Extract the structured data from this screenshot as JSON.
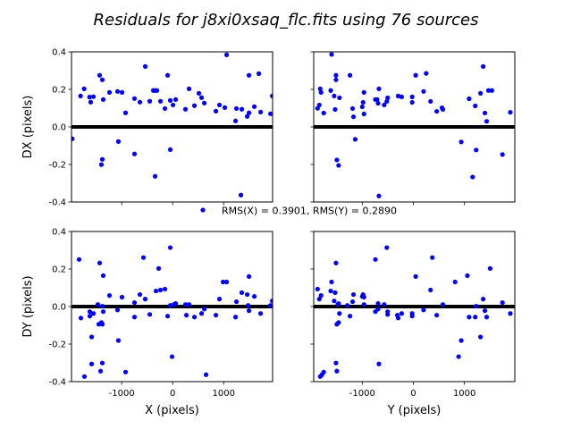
{
  "chart_data": {
    "title": "Residuals for j8xi0xsaq_flc.fits using 76 sources",
    "legend": {
      "label": "RMS(X) = 0.3901, RMS(Y) = 0.2890",
      "placement": "center"
    },
    "marker_color": "#0000ff",
    "zero_line_color": "#000000",
    "panels": [
      {
        "type": "scatter",
        "id": "dx-vs-x",
        "xlabel": "",
        "ylabel": "DX (pixels)",
        "xlim": [
          -1985,
          1960
        ],
        "ylim": [
          -0.4,
          0.4
        ],
        "xticks": [
          "-1000",
          "0",
          "1000"
        ],
        "xtick_values": [
          -1000,
          0,
          1000
        ],
        "show_xticklabels": false,
        "yticks": [
          "-0.4",
          "-0.2",
          "0.0",
          "0.2",
          "0.4"
        ],
        "ytick_values": [
          -0.4,
          -0.2,
          0,
          0.2,
          0.4
        ],
        "show_yticklabels": true,
        "points": [
          [
            -1970,
            -0.063
          ],
          [
            -1807,
            0.165
          ],
          [
            -1737,
            0.203
          ],
          [
            -1631,
            0.159
          ],
          [
            -1608,
            0.132
          ],
          [
            -1555,
            0.161
          ],
          [
            -1433,
            0.275
          ],
          [
            -1380,
            0.251
          ],
          [
            -1362,
            0.146
          ],
          [
            -1240,
            0.184
          ],
          [
            -1082,
            0.189
          ],
          [
            -994,
            0.184
          ],
          [
            -924,
            0.075
          ],
          [
            -749,
            0.151
          ],
          [
            -643,
            0.132
          ],
          [
            -538,
            0.322
          ],
          [
            -450,
            0.137
          ],
          [
            -380,
            0.194
          ],
          [
            -345,
            0.194
          ],
          [
            -310,
            0.194
          ],
          [
            -240,
            0.137
          ],
          [
            -152,
            0.098
          ],
          [
            -99,
            0.275
          ],
          [
            -47,
            0.141
          ],
          [
            6,
            0.117
          ],
          [
            58,
            0.146
          ],
          [
            251,
            0.094
          ],
          [
            321,
            0.203
          ],
          [
            427,
            0.113
          ],
          [
            514,
            0.179
          ],
          [
            567,
            0.156
          ],
          [
            620,
            0.127
          ],
          [
            848,
            0.084
          ],
          [
            918,
            0.117
          ],
          [
            1023,
            0.103
          ],
          [
            1058,
            0.384
          ],
          [
            1234,
            0.032
          ],
          [
            1251,
            0.098
          ],
          [
            1356,
            0.094
          ],
          [
            1462,
            0.056
          ],
          [
            1497,
            0.075
          ],
          [
            1497,
            0.275
          ],
          [
            1602,
            0.108
          ],
          [
            1690,
            0.284
          ],
          [
            1725,
            0.079
          ],
          [
            1918,
            0.07
          ],
          [
            1953,
            0.165
          ],
          [
            -1065,
            -0.078
          ],
          [
            -749,
            -0.144
          ],
          [
            -47,
            -0.121
          ],
          [
            -1398,
            -0.201
          ],
          [
            -1380,
            -0.173
          ],
          [
            -345,
            -0.263
          ],
          [
            1338,
            -0.363
          ]
        ]
      },
      {
        "type": "scatter",
        "id": "dx-vs-y",
        "xlabel": "",
        "ylabel": "",
        "xlim": [
          -1950,
          1985
        ],
        "ylim": [
          -0.4,
          0.4
        ],
        "xticks": [
          "-1000",
          "0",
          "1000"
        ],
        "xtick_values": [
          -1000,
          0,
          1000
        ],
        "show_xticklabels": false,
        "yticks": [
          "-0.4",
          "-0.2",
          "0.0",
          "0.2",
          "0.4"
        ],
        "ytick_values": [
          -0.4,
          -0.2,
          0,
          0.2,
          0.4
        ],
        "show_yticklabels": false,
        "points": [
          [
            -1874,
            0.099
          ],
          [
            -1840,
            0.117
          ],
          [
            -1823,
            0.203
          ],
          [
            -1806,
            0.184
          ],
          [
            -1754,
            0.074
          ],
          [
            -1617,
            0.194
          ],
          [
            -1600,
            0.386
          ],
          [
            -1549,
            0.165
          ],
          [
            -1531,
            0.093
          ],
          [
            -1514,
            0.275
          ],
          [
            -1514,
            0.251
          ],
          [
            -1446,
            0.155
          ],
          [
            -1240,
            0.275
          ],
          [
            -1189,
            0.098
          ],
          [
            -1171,
            0.054
          ],
          [
            -1137,
            -0.066
          ],
          [
            -1000,
            0.107
          ],
          [
            -983,
            0.131
          ],
          [
            -966,
            0.184
          ],
          [
            -966,
            0.069
          ],
          [
            -743,
            0.146
          ],
          [
            -709,
            0.146
          ],
          [
            -691,
            0.126
          ],
          [
            -674,
            0.203
          ],
          [
            -571,
            0.117
          ],
          [
            -520,
            0.136
          ],
          [
            -503,
            0.155
          ],
          [
            -297,
            0.165
          ],
          [
            -229,
            0.16
          ],
          [
            -23,
            0.16
          ],
          [
            -23,
            0.131
          ],
          [
            46,
            0.275
          ],
          [
            200,
            0.189
          ],
          [
            251,
            0.285
          ],
          [
            337,
            0.136
          ],
          [
            457,
            0.083
          ],
          [
            560,
            0.102
          ],
          [
            577,
            0.093
          ],
          [
            937,
            -0.08
          ],
          [
            1091,
            0.15
          ],
          [
            1160,
            -0.267
          ],
          [
            1211,
            0.112
          ],
          [
            1229,
            -0.123
          ],
          [
            1314,
            0.179
          ],
          [
            1366,
            0.322
          ],
          [
            1400,
            0.074
          ],
          [
            1434,
            0.03
          ],
          [
            1469,
            0.194
          ],
          [
            1537,
            0.194
          ],
          [
            1743,
            -0.147
          ],
          [
            1897,
            0.078
          ],
          [
            -1497,
            -0.176
          ],
          [
            -1463,
            -0.205
          ],
          [
            -674,
            -0.368
          ]
        ]
      },
      {
        "type": "scatter",
        "id": "dy-vs-x",
        "xlabel": "X (pixels)",
        "ylabel": "DY (pixels)",
        "xlim": [
          -1985,
          1960
        ],
        "ylim": [
          -0.4,
          0.4
        ],
        "xticks": [
          "-1000",
          "0",
          "1000"
        ],
        "xtick_values": [
          -1000,
          0,
          1000
        ],
        "show_xticklabels": true,
        "yticks": [
          "-0.4",
          "-0.2",
          "0.0",
          "0.2",
          "0.4"
        ],
        "ytick_values": [
          -0.4,
          -0.2,
          0,
          0.2,
          0.4
        ],
        "show_yticklabels": true,
        "points": [
          [
            -1836,
            0.251
          ],
          [
            -1801,
            -0.061
          ],
          [
            -1731,
            -0.373
          ],
          [
            -1626,
            -0.027
          ],
          [
            -1626,
            -0.051
          ],
          [
            -1590,
            -0.162
          ],
          [
            -1590,
            -0.306
          ],
          [
            -1555,
            -0.037
          ],
          [
            -1467,
            0.011
          ],
          [
            -1450,
            -0.094
          ],
          [
            -1432,
            0.232
          ],
          [
            -1415,
            -0.344
          ],
          [
            -1397,
            -0.085
          ],
          [
            -1380,
            0.002
          ],
          [
            -1380,
            -0.094
          ],
          [
            -1380,
            -0.301
          ],
          [
            -1362,
            0.165
          ],
          [
            -1362,
            -0.027
          ],
          [
            -1240,
            0.059
          ],
          [
            -1082,
            -0.018
          ],
          [
            -1065,
            -0.181
          ],
          [
            -994,
            0.05
          ],
          [
            -924,
            -0.349
          ],
          [
            -749,
            0.021
          ],
          [
            -749,
            -0.056
          ],
          [
            -643,
            0.064
          ],
          [
            -573,
            0.261
          ],
          [
            -538,
            0.04
          ],
          [
            -450,
            -0.042
          ],
          [
            -327,
            0.083
          ],
          [
            -275,
            0.203
          ],
          [
            -240,
            0.088
          ],
          [
            -152,
            0.093
          ],
          [
            -99,
            -0.051
          ],
          [
            -47,
            0.314
          ],
          [
            -47,
            0.006
          ],
          [
            -12,
            -0.267
          ],
          [
            23,
            0.011
          ],
          [
            58,
            0.016
          ],
          [
            251,
            0.011
          ],
          [
            269,
            -0.046
          ],
          [
            321,
            0.011
          ],
          [
            427,
            -0.056
          ],
          [
            567,
            -0.037
          ],
          [
            620,
            -0.013
          ],
          [
            655,
            -0.363
          ],
          [
            848,
            -0.046
          ],
          [
            918,
            0.04
          ],
          [
            988,
            0.131
          ],
          [
            1058,
            0.131
          ],
          [
            1234,
            -0.056
          ],
          [
            1251,
            0.026
          ],
          [
            1356,
            0.074
          ],
          [
            1462,
            0.064
          ],
          [
            1480,
            0.006
          ],
          [
            1497,
            0.16
          ],
          [
            1497,
            -0.022
          ],
          [
            1602,
            0.054
          ],
          [
            1725,
            -0.037
          ],
          [
            1918,
            0.006
          ],
          [
            1953,
            0.03
          ]
        ]
      },
      {
        "type": "scatter",
        "id": "dy-vs-y",
        "xlabel": "Y (pixels)",
        "ylabel": "",
        "xlim": [
          -1950,
          1985
        ],
        "ylim": [
          -0.4,
          0.4
        ],
        "xticks": [
          "-1000",
          "0",
          "1000"
        ],
        "xtick_values": [
          -1000,
          0,
          1000
        ],
        "show_xticklabels": true,
        "yticks": [
          "-0.4",
          "-0.2",
          "0.0",
          "0.2",
          "0.4"
        ],
        "ytick_values": [
          -0.4,
          -0.2,
          0,
          0.2,
          0.4
        ],
        "show_yticklabels": false,
        "points": [
          [
            -1874,
            0.093
          ],
          [
            -1840,
            0.04
          ],
          [
            -1806,
            0.059
          ],
          [
            -1823,
            -0.373
          ],
          [
            -1789,
            -0.363
          ],
          [
            -1754,
            -0.349
          ],
          [
            -1617,
            0.083
          ],
          [
            -1600,
            0.131
          ],
          [
            -1549,
            0.03
          ],
          [
            -1531,
            0.074
          ],
          [
            -1514,
            0.232
          ],
          [
            -1514,
            -0.301
          ],
          [
            -1497,
            -0.344
          ],
          [
            -1497,
            -0.094
          ],
          [
            -1480,
            0.011
          ],
          [
            -1463,
            -0.085
          ],
          [
            -1463,
            0.016
          ],
          [
            -1446,
            -0.037
          ],
          [
            -1291,
            0.006
          ],
          [
            -1240,
            -0.051
          ],
          [
            -1189,
            0.026
          ],
          [
            -1171,
            0.064
          ],
          [
            -1000,
            0.054
          ],
          [
            -983,
            0.064
          ],
          [
            -966,
            0.05
          ],
          [
            -966,
            0.011
          ],
          [
            -743,
            0.251
          ],
          [
            -743,
            -0.027
          ],
          [
            -691,
            0.016
          ],
          [
            -691,
            -0.013
          ],
          [
            -674,
            -0.306
          ],
          [
            -571,
            0.011
          ],
          [
            -520,
            0.314
          ],
          [
            -503,
            -0.027
          ],
          [
            -503,
            -0.042
          ],
          [
            -314,
            -0.046
          ],
          [
            -297,
            -0.061
          ],
          [
            -229,
            -0.037
          ],
          [
            -23,
            -0.037
          ],
          [
            -23,
            -0.051
          ],
          [
            46,
            0.16
          ],
          [
            200,
            -0.018
          ],
          [
            337,
            0.088
          ],
          [
            371,
            0.261
          ],
          [
            457,
            -0.046
          ],
          [
            577,
            0.011
          ],
          [
            817,
            0.131
          ],
          [
            886,
            -0.267
          ],
          [
            937,
            -0.181
          ],
          [
            1057,
            0.165
          ],
          [
            1091,
            -0.056
          ],
          [
            1211,
            -0.056
          ],
          [
            1229,
            0.002
          ],
          [
            1314,
            -0.162
          ],
          [
            1366,
            0.04
          ],
          [
            1400,
            -0.022
          ],
          [
            1434,
            -0.056
          ],
          [
            1503,
            0.203
          ],
          [
            1743,
            0.021
          ],
          [
            1897,
            -0.037
          ]
        ]
      }
    ]
  }
}
